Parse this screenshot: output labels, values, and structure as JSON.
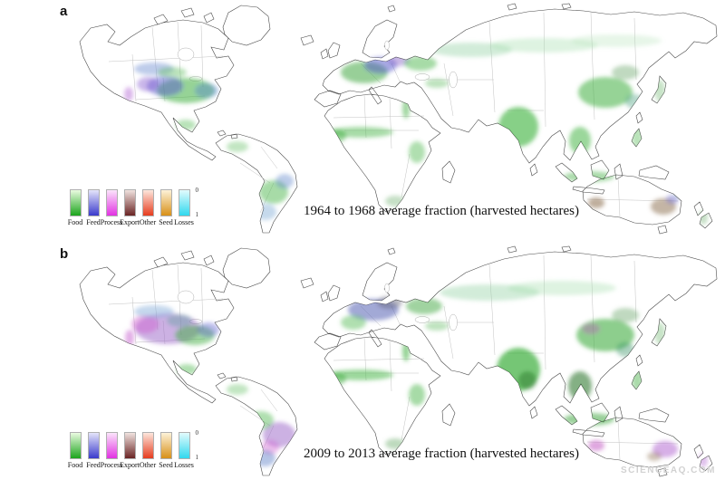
{
  "figure": {
    "watermark": "SCIENCEAQ.COM",
    "panels": [
      {
        "id": "a",
        "label": "a",
        "caption": "1964 to 1968 average fraction (harvested hectares)"
      },
      {
        "id": "b",
        "label": "b",
        "caption": "2009 to 2013 average fraction (harvested hectares)"
      }
    ],
    "legend": {
      "scale_top": "0",
      "scale_bottom": "1",
      "categories": [
        {
          "label": "Food",
          "color": "#1ca41c",
          "color_light": "#eafbe0"
        },
        {
          "label": "Feed",
          "color": "#3a3acc",
          "color_light": "#e4e4fa"
        },
        {
          "label": "Process",
          "color": "#e232e2",
          "color_light": "#fbe4fb"
        },
        {
          "label": "Export",
          "color": "#6a2424",
          "color_light": "#f0e2de"
        },
        {
          "label": "Other",
          "color": "#e63c1e",
          "color_light": "#fde6dc"
        },
        {
          "label": "Seed",
          "color": "#d89018",
          "color_light": "#fdf2d8"
        },
        {
          "label": "Losses",
          "color": "#30d8ee",
          "color_light": "#e2fbfd"
        }
      ]
    }
  }
}
